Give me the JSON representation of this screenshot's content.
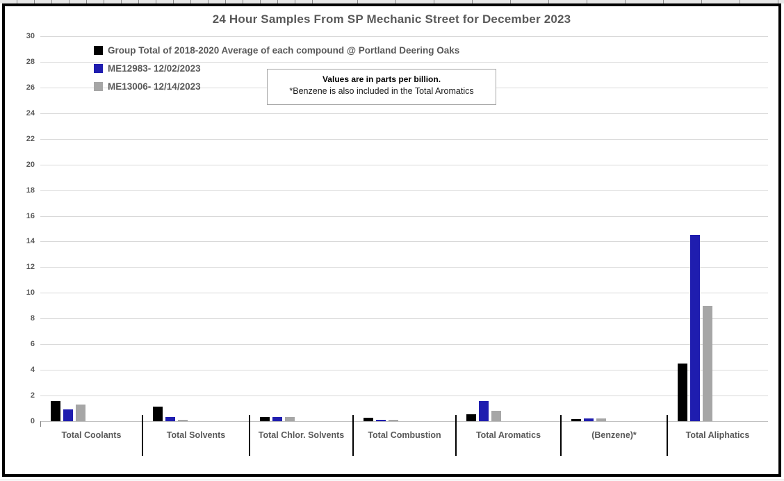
{
  "chart_data": {
    "type": "bar",
    "title": "24 Hour Samples From SP Mechanic Street for December 2023",
    "units_note": {
      "line1": "Values are in parts per billion.",
      "line2": "*Benzene is also included in the Total Aromatics"
    },
    "categories": [
      "Total Coolants",
      "Total Solvents",
      "Total Chlor. Solvents",
      "Total Combustion",
      "Total Aromatics",
      "(Benzene)*",
      "Total Aliphatics"
    ],
    "series": [
      {
        "name": "Group Total of 2018-2020 Average of each compound @ Portland Deering Oaks",
        "color": "#000000",
        "values": [
          1.55,
          1.15,
          0.35,
          0.25,
          0.55,
          0.15,
          4.5
        ]
      },
      {
        "name": "ME12983- 12/02/2023",
        "color": "#1f1daf",
        "values": [
          0.9,
          0.3,
          0.35,
          0.1,
          1.55,
          0.2,
          14.5
        ]
      },
      {
        "name": "ME13006- 12/14/2023",
        "color": "#a6a6a6",
        "values": [
          1.3,
          0.1,
          0.3,
          0.1,
          0.8,
          0.2,
          9.0
        ]
      }
    ],
    "ylabel": "",
    "xlabel": "",
    "ylim": [
      0,
      30
    ],
    "ytick_step": 2,
    "grid": true,
    "legend_position": "top-left"
  }
}
